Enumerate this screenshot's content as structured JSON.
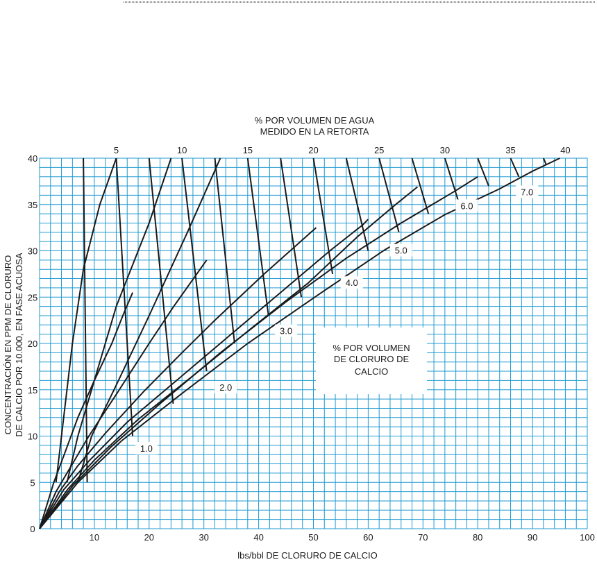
{
  "chart_data": {
    "type": "line",
    "top_title": [
      "% POR VOLUMEN DE AGUA",
      "MEDIDO EN LA RETORTA"
    ],
    "xlabel": "lbs/bbl DE CLORURO DE CALCIO",
    "ylabel": [
      "CONCENTRACIÓN EN PPM DE CLORURO",
      "DE CALCIO POR 10.000, EN FASE ACUOSA"
    ],
    "annotation": [
      "% POR VOLUMEN",
      "DE CLORURO DE",
      "CALCIO"
    ],
    "xlim": [
      0,
      100
    ],
    "ylim": [
      0,
      40
    ],
    "x_ticks": [
      "10",
      "20",
      "30",
      "40",
      "50",
      "60",
      "70",
      "80",
      "90",
      "100"
    ],
    "y_ticks": [
      "0",
      "5",
      "10",
      "15",
      "20",
      "25",
      "30",
      "35",
      "40"
    ],
    "grid": true,
    "grid_color": "#1e9ad0",
    "line_color": "#1a1a1a",
    "top_scale_ticks": [
      "5",
      "10",
      "15",
      "20",
      "25",
      "30",
      "35",
      "40"
    ],
    "top_scale_x": [
      14,
      26,
      38,
      50,
      62,
      74,
      86,
      96
    ],
    "series": [
      {
        "name": "1.0",
        "x": [
          0,
          2.6,
          4.5,
          7.0,
          10.0,
          13.2,
          15.2,
          17.0
        ],
        "y": [
          0,
          5,
          8,
          12,
          16,
          20,
          23,
          25.5
        ],
        "label_at": [
          19.5,
          8.6
        ]
      },
      {
        "name": "2.0",
        "x": [
          0,
          3.0,
          5.5,
          9.0,
          14.0,
          20.0,
          24.5,
          30.5
        ],
        "y": [
          0,
          4,
          6.5,
          10,
          14.5,
          20,
          24,
          29
        ],
        "label_at": [
          34,
          15.2
        ]
      },
      {
        "name": "3.0",
        "x": [
          0,
          3.6,
          7.0,
          12.0,
          19.0,
          26.0,
          32.0,
          41.0,
          50.5
        ],
        "y": [
          0,
          4,
          6.8,
          10.3,
          14.8,
          19,
          22.5,
          27.5,
          32.5
        ],
        "label_at": [
          45,
          21.3
        ]
      },
      {
        "name": "4.0",
        "x": [
          0,
          4.4,
          9.0,
          16.0,
          25.0,
          35.0,
          44.0,
          53.0,
          59.0,
          60.0
        ],
        "y": [
          0,
          4.2,
          7.3,
          11.5,
          16,
          21,
          25.5,
          30,
          32.8,
          33.4
        ],
        "label_at": [
          57,
          26.5
        ]
      },
      {
        "name": "5.0",
        "x": [
          0,
          5.2,
          10.0,
          18.0,
          28.0,
          39.0,
          49.0,
          58.0,
          65.0,
          69.0
        ],
        "y": [
          0,
          4.3,
          7.4,
          11.8,
          16.5,
          21.8,
          26.5,
          31.5,
          35,
          36.9
        ],
        "label_at": [
          66,
          30
        ]
      },
      {
        "name": "6.0",
        "x": [
          0,
          6.0,
          13.0,
          22.0,
          33.0,
          45.0,
          56.0,
          66.0,
          76.0,
          80.0
        ],
        "y": [
          0,
          4.6,
          8.8,
          13.5,
          19,
          24.5,
          29.2,
          33,
          36.5,
          38
        ],
        "label_at": [
          78,
          34.8
        ]
      },
      {
        "name": "7.0",
        "x": [
          0,
          7.0,
          15.0,
          26.0,
          38.0,
          51.0,
          63.0,
          74.0,
          84.0,
          90.0,
          95.0
        ],
        "y": [
          0,
          5,
          9.5,
          14.6,
          20,
          25.3,
          30.1,
          33.9,
          36.7,
          38.6,
          40
        ],
        "label_at": [
          89,
          36.3
        ]
      }
    ],
    "water_lines": [
      {
        "x": [
          8.0,
          8.7
        ],
        "y": [
          40,
          5
        ]
      },
      {
        "x": [
          14.0,
          17.0
        ],
        "y": [
          40,
          10
        ]
      },
      {
        "x": [
          20.0,
          24.4
        ],
        "y": [
          40,
          13.5
        ]
      },
      {
        "x": [
          26.0,
          30.5
        ],
        "y": [
          40,
          17
        ]
      },
      {
        "x": [
          32.0,
          35.6
        ],
        "y": [
          40,
          20
        ]
      },
      {
        "x": [
          38.0,
          41.8
        ],
        "y": [
          40,
          23
        ]
      },
      {
        "x": [
          44.0,
          47.8
        ],
        "y": [
          40,
          25
        ]
      },
      {
        "x": [
          50.0,
          53.5
        ],
        "y": [
          40,
          27.5
        ]
      },
      {
        "x": [
          56.0,
          60.0
        ],
        "y": [
          40,
          30
        ]
      },
      {
        "x": [
          62.0,
          65.6
        ],
        "y": [
          40,
          32
        ]
      },
      {
        "x": [
          68.0,
          71.0
        ],
        "y": [
          40,
          34
        ]
      },
      {
        "x": [
          74.0,
          76.5
        ],
        "y": [
          40,
          35.3
        ]
      },
      {
        "x": [
          80.0,
          82.0
        ],
        "y": [
          40,
          37
        ]
      },
      {
        "x": [
          86.0,
          87.5
        ],
        "y": [
          40,
          38
        ]
      },
      {
        "x": [
          92.0,
          92.5
        ],
        "y": [
          40,
          39.3
        ]
      }
    ],
    "steep_curves": [
      {
        "x": [
          3.0,
          4.0,
          6.0,
          8.0,
          11.0,
          14.0
        ],
        "y": [
          5,
          10,
          20,
          28,
          35,
          40
        ]
      },
      {
        "x": [
          5.0,
          7.0,
          10.0,
          14.0,
          20.0,
          24.0
        ],
        "y": [
          5,
          10,
          16,
          24,
          33,
          40
        ]
      },
      {
        "x": [
          7.0,
          9.5,
          14.0,
          20.0,
          27.0,
          33.0
        ],
        "y": [
          5,
          10,
          15.5,
          23,
          32,
          40
        ]
      }
    ]
  }
}
